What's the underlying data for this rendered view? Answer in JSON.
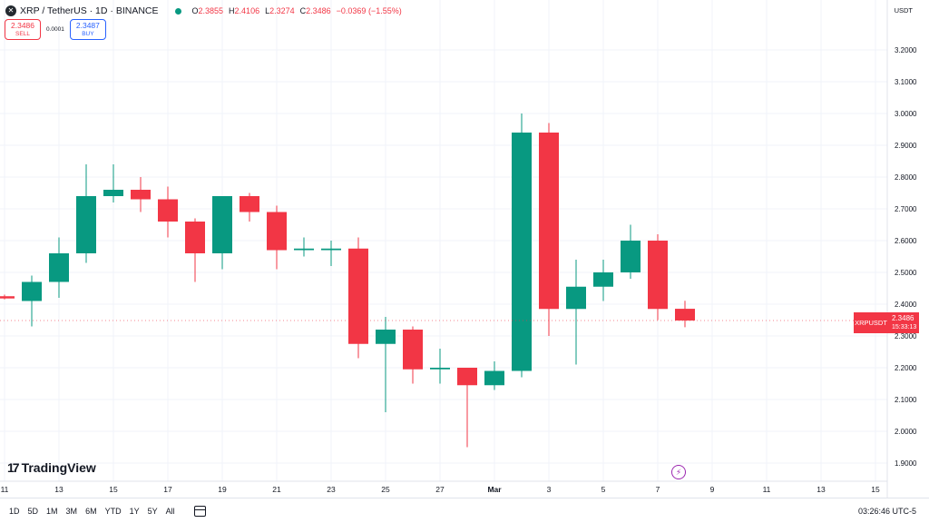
{
  "header": {
    "title": "XRP / TetherUS · 1D · BINANCE",
    "o_label": "O",
    "o": "2.3855",
    "h_label": "H",
    "h": "2.4106",
    "l_label": "L",
    "l": "2.3274",
    "c_label": "C",
    "c": "2.3486",
    "change": "−0.0369 (−1.55%)",
    "currency": "USDT"
  },
  "trade": {
    "sell_price": "2.3486",
    "sell_label": "SELL",
    "spread": "0.0001",
    "buy_price": "2.3487",
    "buy_label": "BUY"
  },
  "last_price": {
    "symbol": "XRPUSDT",
    "price": "2.3486",
    "countdown": "15:33:13"
  },
  "branding": {
    "name": "TradingView"
  },
  "bottom": {
    "ranges": [
      "1D",
      "5D",
      "1M",
      "3M",
      "6M",
      "YTD",
      "1Y",
      "5Y",
      "All"
    ],
    "clock": "03:26:46 UTC-5"
  },
  "colors": {
    "up": "#089981",
    "down": "#f23645",
    "grid": "#f0f3fa"
  },
  "chart_data": {
    "type": "candlestick",
    "y_range": [
      1.86,
      3.26
    ],
    "y_ticks": [
      "1.9000",
      "2.0000",
      "2.1000",
      "2.2000",
      "2.3000",
      "2.4000",
      "2.5000",
      "2.6000",
      "2.7000",
      "2.8000",
      "2.9000",
      "3.0000",
      "3.1000",
      "3.2000"
    ],
    "x_ticks": [
      {
        "day": 11,
        "label": "11"
      },
      {
        "day": 13,
        "label": "13"
      },
      {
        "day": 15,
        "label": "15"
      },
      {
        "day": 17,
        "label": "17"
      },
      {
        "day": 19,
        "label": "19"
      },
      {
        "day": 21,
        "label": "21"
      },
      {
        "day": 23,
        "label": "23"
      },
      {
        "day": 25,
        "label": "25"
      },
      {
        "day": 27,
        "label": "27"
      },
      {
        "day": 29,
        "label": "Mar"
      },
      {
        "day": 31,
        "label": "3"
      },
      {
        "day": 33,
        "label": "5"
      },
      {
        "day": 35,
        "label": "7"
      },
      {
        "day": 37,
        "label": "9"
      },
      {
        "day": 39,
        "label": "11"
      },
      {
        "day": 41,
        "label": "13"
      },
      {
        "day": 43,
        "label": "15"
      }
    ],
    "candles": [
      {
        "day": 11,
        "o": 2.425,
        "h": 2.43,
        "l": 2.415,
        "c": 2.418
      },
      {
        "day": 12,
        "o": 2.41,
        "h": 2.49,
        "l": 2.33,
        "c": 2.47
      },
      {
        "day": 13,
        "o": 2.47,
        "h": 2.61,
        "l": 2.42,
        "c": 2.56
      },
      {
        "day": 14,
        "o": 2.56,
        "h": 2.84,
        "l": 2.53,
        "c": 2.74
      },
      {
        "day": 15,
        "o": 2.74,
        "h": 2.84,
        "l": 2.72,
        "c": 2.76
      },
      {
        "day": 16,
        "o": 2.76,
        "h": 2.8,
        "l": 2.69,
        "c": 2.73
      },
      {
        "day": 17,
        "o": 2.73,
        "h": 2.77,
        "l": 2.61,
        "c": 2.66
      },
      {
        "day": 18,
        "o": 2.66,
        "h": 2.67,
        "l": 2.47,
        "c": 2.56
      },
      {
        "day": 19,
        "o": 2.56,
        "h": 2.74,
        "l": 2.51,
        "c": 2.74
      },
      {
        "day": 20,
        "o": 2.74,
        "h": 2.75,
        "l": 2.66,
        "c": 2.69
      },
      {
        "day": 21,
        "o": 2.69,
        "h": 2.71,
        "l": 2.51,
        "c": 2.57
      },
      {
        "day": 22,
        "o": 2.57,
        "h": 2.61,
        "l": 2.55,
        "c": 2.575
      },
      {
        "day": 23,
        "o": 2.57,
        "h": 2.6,
        "l": 2.52,
        "c": 2.575
      },
      {
        "day": 24,
        "o": 2.575,
        "h": 2.61,
        "l": 2.23,
        "c": 2.275
      },
      {
        "day": 25,
        "o": 2.275,
        "h": 2.36,
        "l": 2.06,
        "c": 2.32
      },
      {
        "day": 26,
        "o": 2.32,
        "h": 2.33,
        "l": 2.15,
        "c": 2.195
      },
      {
        "day": 27,
        "o": 2.195,
        "h": 2.26,
        "l": 2.15,
        "c": 2.2
      },
      {
        "day": 28,
        "o": 2.2,
        "h": 2.2,
        "l": 1.95,
        "c": 2.145
      },
      {
        "day": 29,
        "o": 2.145,
        "h": 2.22,
        "l": 2.13,
        "c": 2.19
      },
      {
        "day": 30,
        "o": 2.19,
        "h": 3.0,
        "l": 2.17,
        "c": 2.94
      },
      {
        "day": 31,
        "o": 2.94,
        "h": 2.97,
        "l": 2.3,
        "c": 2.385
      },
      {
        "day": 32,
        "o": 2.385,
        "h": 2.54,
        "l": 2.21,
        "c": 2.455
      },
      {
        "day": 33,
        "o": 2.455,
        "h": 2.54,
        "l": 2.41,
        "c": 2.5
      },
      {
        "day": 34,
        "o": 2.5,
        "h": 2.65,
        "l": 2.48,
        "c": 2.6
      },
      {
        "day": 35,
        "o": 2.6,
        "h": 2.62,
        "l": 2.35,
        "c": 2.385
      },
      {
        "day": 36,
        "o": 2.3855,
        "h": 2.4106,
        "l": 2.3274,
        "c": 2.3486
      }
    ],
    "last_price_line": 2.3486,
    "grid": true
  }
}
